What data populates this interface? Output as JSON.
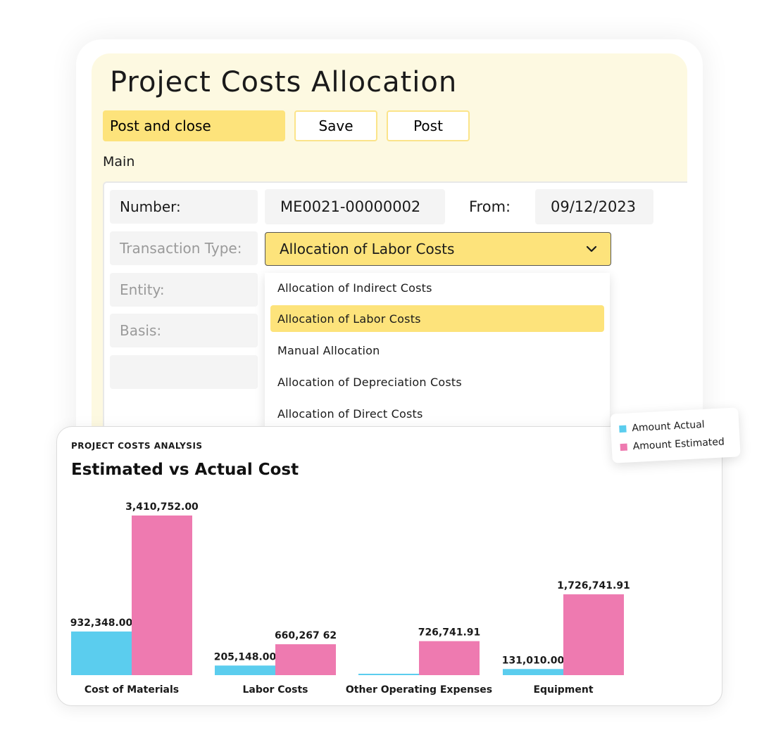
{
  "form": {
    "title": "Project Costs Allocation",
    "buttons": {
      "post_and_close": "Post and close",
      "save": "Save",
      "post": "Post"
    },
    "section": "Main",
    "fields": {
      "number_label": "Number:",
      "number_value": "ME0021-00000002",
      "from_label": "From:",
      "from_value": "09/12/2023",
      "transaction_type_label": "Transaction Type:",
      "transaction_type_value": "Allocation of Labor Costs",
      "entity_label": "Entity:",
      "basis_label": "Basis:"
    },
    "dropdown_options": [
      {
        "label": "Allocation of Indirect Costs",
        "selected": false
      },
      {
        "label": "Allocation of Labor Costs",
        "selected": true
      },
      {
        "label": "Manual Allocation",
        "selected": false
      },
      {
        "label": "Allocation of Depreciation Costs",
        "selected": false
      },
      {
        "label": "Allocation of Direct Costs",
        "selected": false
      }
    ]
  },
  "chart_card": {
    "kicker": "PROJECT COSTS ANALYSIS",
    "title": "Estimated vs Actual Cost"
  },
  "colors": {
    "accent_yellow": "#fde37b",
    "actual": "#5bcdee",
    "estimated": "#ee7ab0"
  },
  "chart_data": {
    "type": "bar",
    "title": "Estimated vs Actual Cost",
    "categories": [
      "Cost of Materials",
      "Labor Costs",
      "Other Operating Expenses",
      "Equipment"
    ],
    "series": [
      {
        "name": "Amount Actual",
        "values": [
          932348.0,
          205148.0,
          0,
          131010.0
        ],
        "labels": [
          "932,348.00",
          "205,148.00",
          "",
          "131,010.00"
        ]
      },
      {
        "name": "Amount Estimated",
        "values": [
          3410752.0,
          660267.62,
          726741.91,
          1726741.91
        ],
        "labels": [
          "3,410,752.00",
          "660,267 62",
          "726,741.91",
          "1,726,741.91"
        ]
      }
    ],
    "legend_position": "top-right",
    "grid": false
  }
}
